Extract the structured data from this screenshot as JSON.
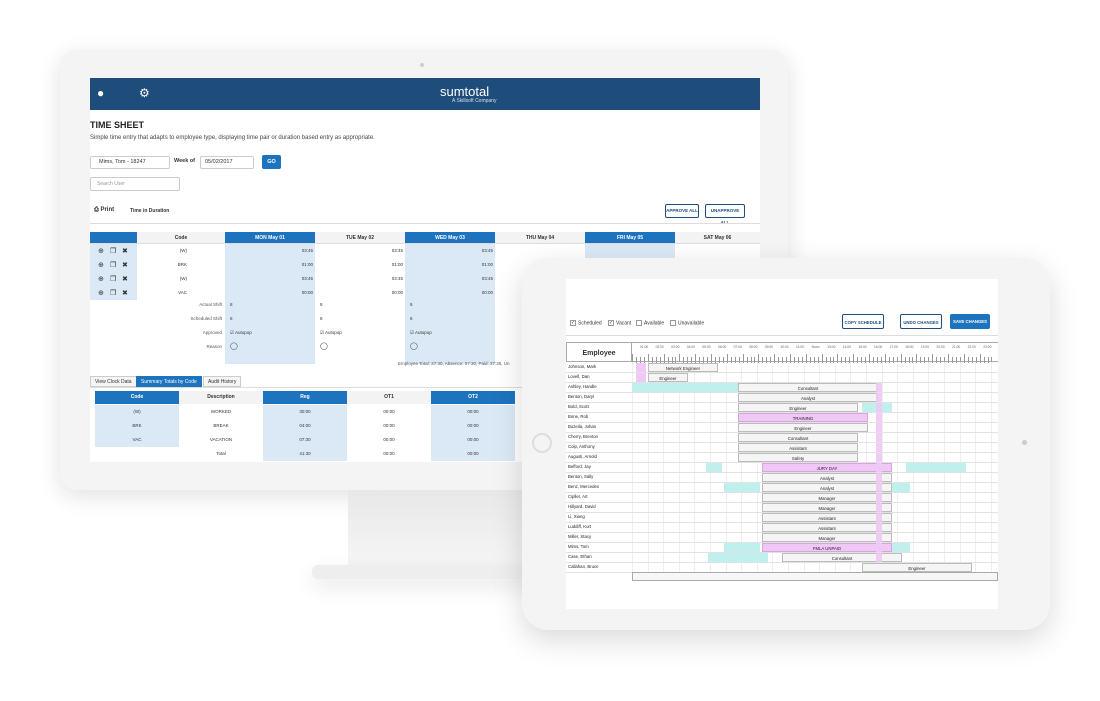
{
  "monitor": {
    "brand": "sumtotal",
    "brand_sub": "A Skillsoft Company",
    "title": "TIME SHEET",
    "description": "Simple time entry that adapts to employee type, displaying time pair or duration based entry as appropriate.",
    "employee_select": "Mims, Tom - 18247",
    "week_of_label": "Week of",
    "week_date": "05/02/2017",
    "go_label": "GO",
    "search_placeholder": "Search User",
    "print_label": "Print",
    "time_mode": "Time in Duration",
    "approve_all": "APPROVE ALL",
    "unapprove_all": "UNAPPROVE ALL",
    "code_header": "Code",
    "days": [
      "MON May 01",
      "TUE May 02",
      "WED May 03",
      "THU May 04",
      "FRI May 05",
      "SAT May 06"
    ],
    "codes": [
      "(W)",
      "BRK",
      "(W)",
      "VAC"
    ],
    "times": [
      [
        "03:45",
        "03:45",
        "03:45",
        "",
        ""
      ],
      [
        "01:00",
        "01:00",
        "01:00",
        "",
        ""
      ],
      [
        "03:45",
        "03:45",
        "03:45",
        "",
        ""
      ],
      [
        "00:00",
        "00:00",
        "00:00",
        "",
        "00:00"
      ]
    ],
    "row_labels": [
      "Actual Shift",
      "Scheduled Shift",
      "Approved",
      "Reason"
    ],
    "shift_value": "8",
    "autopop": "Autopop",
    "employee_total": "Employee Total: 37:30, Absence: 07:30, Paid: 37:30, Un",
    "tabs": [
      "View Clock Data",
      "Summary Totals by Code",
      "Audit History"
    ],
    "summary_headers": [
      "Code",
      "Description",
      "Reg",
      "OT1",
      "OT2"
    ],
    "summary_rows": [
      [
        "(W)",
        "WORKED",
        "30:00",
        "00:00",
        "00:00"
      ],
      [
        "BRK",
        "BREAK",
        "04:00",
        "00:00",
        "00:00"
      ],
      [
        "VAC",
        "VACATION",
        "07:30",
        "00:00",
        "00:00"
      ],
      [
        "",
        "Total",
        "41:30",
        "00:00",
        "00:00"
      ]
    ]
  },
  "tablet": {
    "filters": [
      "Scheduled",
      "Vacant",
      "Available",
      "Unavailable"
    ],
    "copy_schedule": "COPY SCHEDULE",
    "undo_changes": "UNDO CHANGES",
    "save_changes": "SAVE CHANGES",
    "employee_header": "Employee",
    "time_labels": [
      "01:00",
      "02:00",
      "03:00",
      "04:00",
      "05:00",
      "06:00",
      "07:00",
      "08:00",
      "09:00",
      "10:00",
      "11:00",
      "Noon",
      "13:00",
      "14:00",
      "15:00",
      "16:00",
      "17:00",
      "18:00",
      "19:00",
      "20:00",
      "21:00",
      "22:00",
      "23:00"
    ],
    "employees": [
      "Johnson, Mark",
      "Lovell, Dan",
      "Ashley, Handle",
      "Benton, Daryl",
      "Bold, Scott",
      "Bone, Rob",
      "Bozeila, Johan",
      "Cherry, Brenton",
      "Colp, Anthony",
      "Augusti, Arnold",
      "Befford, Jay",
      "Benton, Sally",
      "Benz, Mercedes",
      "Cipller, Art",
      "Hillyard, David",
      "Li, Xiang",
      "Luddiff, Kurt",
      "Miller, Stacy",
      "Mims, Tom",
      "Case, Ethan",
      "Callahan, Bruce"
    ],
    "shift_labels": [
      "Network Engineer",
      "Engineer",
      "Consultant",
      "Analyst",
      "Engineer",
      "TRAINING",
      "Engineer",
      "Consultant",
      "Assistant",
      "Safety",
      "JURY DAY",
      "Analyst",
      "Analyst",
      "Manager",
      "Manager",
      "Assistant",
      "Assistant",
      "Manager",
      "FMLA UNPAID",
      "Consultant",
      "Engineer"
    ],
    "colors": {
      "pink": "#f0c8f5",
      "cyan": "#bff0ee",
      "blue": "#1e73be",
      "navy": "#1e4d7b"
    }
  }
}
